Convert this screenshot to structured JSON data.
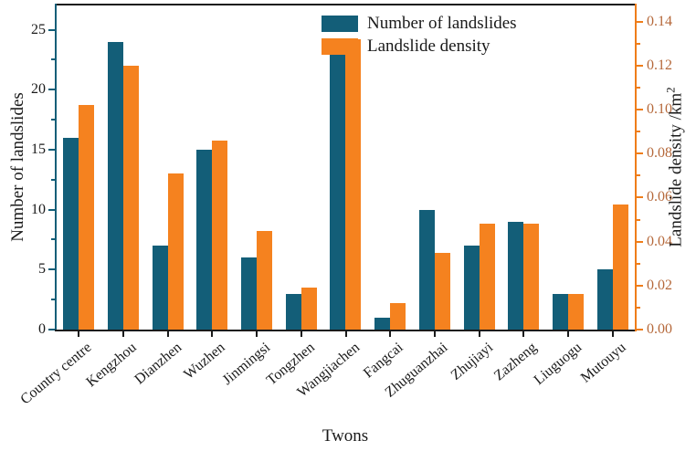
{
  "chart_data": {
    "type": "bar",
    "title": "",
    "xlabel": "Twons",
    "ylabel_left": "Number of landslides",
    "ylabel_right": {
      "base": "Landslide density /km",
      "sup": "2"
    },
    "categories": [
      "Country centre",
      "Kengzhou",
      "Dianzhen",
      "Wuzhen",
      "Jinmingsi",
      "Tongzhen",
      "Wangjiachen",
      "Fangcai",
      "Zhuguanzhai",
      "Zhujiayi",
      "Zazheng",
      "Liuguogu",
      "Mutouyu"
    ],
    "series": [
      {
        "name": "Number of landslides",
        "axis": "left",
        "color": "#135e78",
        "values": [
          16,
          24,
          7,
          15,
          6,
          3,
          23,
          1,
          10,
          7,
          9,
          3,
          5
        ]
      },
      {
        "name": "Landslide density",
        "axis": "right",
        "color": "#f5821f",
        "values": [
          0.102,
          0.12,
          0.071,
          0.086,
          0.045,
          0.019,
          0.132,
          0.012,
          0.035,
          0.048,
          0.048,
          0.016,
          0.057
        ]
      }
    ],
    "yticks_left": [
      "0",
      "5",
      "10",
      "15",
      "20",
      "25"
    ],
    "ytick_values_left": [
      0,
      5,
      10,
      15,
      20,
      25
    ],
    "yticks_right": [
      "0.00",
      "0.02",
      "0.04",
      "0.06",
      "0.08",
      "0.10",
      "0.12",
      "0.14"
    ],
    "ytick_values_right": [
      0,
      0.02,
      0.04,
      0.06,
      0.08,
      0.1,
      0.12,
      0.14
    ],
    "ylim_left": [
      0,
      27.1
    ],
    "ylim_right": [
      0,
      0.1478
    ],
    "legend_position": "top-right-inside",
    "grid": false
  },
  "colors": {
    "series_left": "#135e78",
    "series_right": "#f5821f",
    "left_axis": "#135e78",
    "right_axis": "#ef7d1a",
    "bottom_axis": "#1a1a1a",
    "top_axis": "#1a1a1a",
    "right_tick_label": "#b5683a",
    "text": "#1a1a1a",
    "background": "#ffffff"
  }
}
